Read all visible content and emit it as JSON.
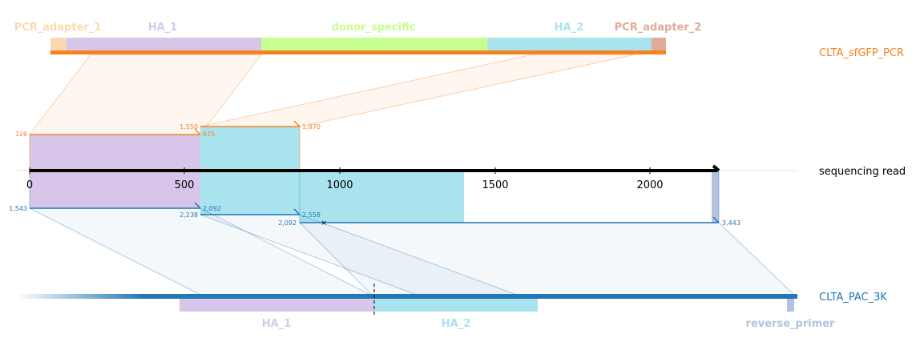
{
  "colors": {
    "pcr_orange": "#f58220",
    "pac_blue": "#2176b5",
    "ha1": "#d7c6ea",
    "ha2": "#a9e4ee",
    "donor": "#c6ff8f",
    "adapter1": "#fbd9b0",
    "adapter2": "#e1aa99",
    "reverse_primer": "#b3c2de",
    "read": "#000000"
  },
  "top_features": {
    "pcr_adapter_1": "PCR_adapter_1",
    "ha_1": "HA_1",
    "donor_specific": "donor_specific",
    "ha_2": "HA_2",
    "pcr_adapter_2": "PCR_adapter_2"
  },
  "bottom_features": {
    "ha_1": "HA_1",
    "ha_2": "HA_2",
    "reverse_primer": "reverse_primer"
  },
  "targets": {
    "pcr_product": "CLTA_sfGFP_PCR",
    "read": "sequencing read",
    "genome": "CLTA_PAC_3K"
  },
  "read_axis": {
    "ticks": [
      "0",
      "500",
      "1000",
      "1500",
      "2000"
    ]
  },
  "alignment_labels": {
    "top": {
      "a1_start": "126",
      "a1_end": "675",
      "a2_start": "1,550",
      "a2_end": "1,870"
    },
    "bottom": {
      "b1_start": "1,543",
      "b1_end": "2,092",
      "b2_start": "2,238",
      "b2_end": "2,558",
      "b3_start": "2,092",
      "b3_end": "3,443"
    }
  }
}
